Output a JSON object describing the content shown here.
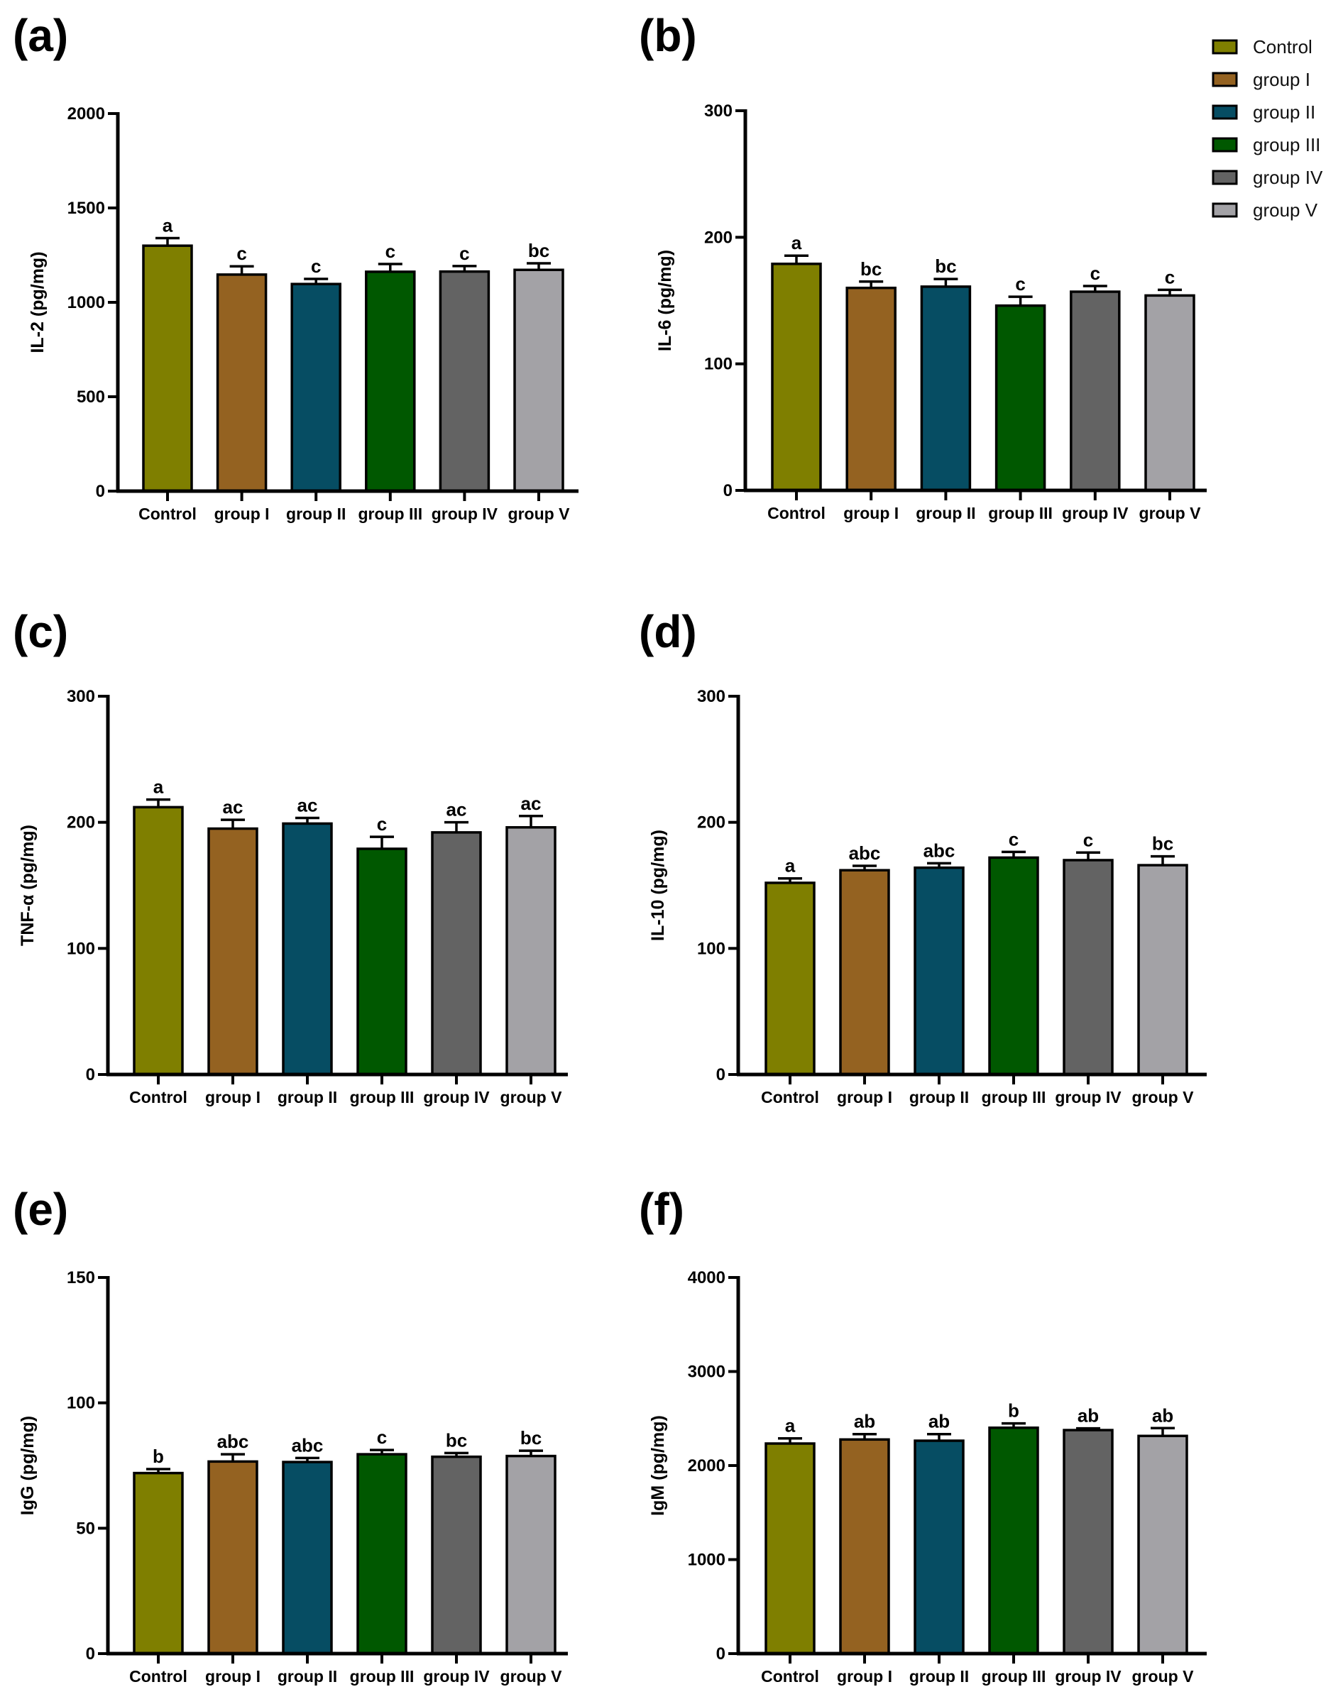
{
  "legend": {
    "position": "top-right",
    "items": [
      {
        "label": "Control",
        "color": "#7F7F00"
      },
      {
        "label": "group I",
        "color": "#946221"
      },
      {
        "label": "group II",
        "color": "#064D63"
      },
      {
        "label": "group III",
        "color": "#005800"
      },
      {
        "label": "group IV",
        "color": "#636363"
      },
      {
        "label": "group V",
        "color": "#A3A2A6"
      }
    ]
  },
  "chart_data": [
    {
      "panel": "(a)",
      "type": "bar",
      "title": "",
      "xlabel": "",
      "ylabel": "IL-2 (pg/mg)",
      "ylim": [
        0,
        2000
      ],
      "yticks": [
        0,
        500,
        1000,
        1500,
        2000
      ],
      "grid": false,
      "categories": [
        "Control",
        "group I",
        "group II",
        "group III",
        "group IV",
        "group V"
      ],
      "values": [
        1300,
        1147,
        1097,
        1162,
        1163,
        1172
      ],
      "errors": [
        40,
        44,
        27,
        41,
        29,
        35
      ],
      "significance": [
        "a",
        "c",
        "c",
        "c",
        "c",
        "bc"
      ]
    },
    {
      "panel": "(b)",
      "type": "bar",
      "title": "",
      "xlabel": "",
      "ylabel": "IL-6 (pg/mg)",
      "ylim": [
        0,
        300
      ],
      "yticks": [
        0,
        100,
        200,
        300
      ],
      "grid": false,
      "categories": [
        "Control",
        "group I",
        "group II",
        "group III",
        "group IV",
        "group V"
      ],
      "values": [
        179,
        160,
        161,
        146,
        157,
        154
      ],
      "errors": [
        6.5,
        5,
        6,
        7,
        4.5,
        4.5
      ],
      "significance": [
        "a",
        "bc",
        "bc",
        "c",
        "c",
        "c"
      ]
    },
    {
      "panel": "(c)",
      "type": "bar",
      "title": "",
      "xlabel": "",
      "ylabel": "TNF-α (pg/mg)",
      "ylim": [
        0,
        300
      ],
      "yticks": [
        0,
        100,
        200,
        300
      ],
      "grid": false,
      "categories": [
        "Control",
        "group I",
        "group II",
        "group III",
        "group IV",
        "group V"
      ],
      "values": [
        212,
        195,
        199,
        179,
        192,
        196
      ],
      "errors": [
        6,
        7,
        4.5,
        9.5,
        8,
        9
      ],
      "significance": [
        "a",
        "ac",
        "ac",
        "c",
        "ac",
        "ac"
      ]
    },
    {
      "panel": "(d)",
      "type": "bar",
      "title": "",
      "xlabel": "",
      "ylabel": "IL-10 (pg/mg)",
      "ylim": [
        0,
        300
      ],
      "yticks": [
        0,
        100,
        200,
        300
      ],
      "grid": false,
      "categories": [
        "Control",
        "group I",
        "group II",
        "group III",
        "group IV",
        "group V"
      ],
      "values": [
        152,
        162,
        164,
        172,
        170,
        166
      ],
      "errors": [
        3.5,
        3.5,
        3.5,
        4.5,
        6,
        7
      ],
      "significance": [
        "a",
        "abc",
        "abc",
        "c",
        "c",
        "bc"
      ]
    },
    {
      "panel": "(e)",
      "type": "bar",
      "title": "",
      "xlabel": "",
      "ylabel": "IgG (pg/mg)",
      "ylim": [
        0,
        150
      ],
      "yticks": [
        0,
        50,
        100,
        150
      ],
      "grid": false,
      "categories": [
        "Control",
        "group I",
        "group II",
        "group III",
        "group IV",
        "group V"
      ],
      "values": [
        72,
        76.6,
        76.4,
        79.5,
        78.5,
        78.8
      ],
      "errors": [
        1.6,
        2.9,
        1.6,
        1.7,
        1.5,
        2.1
      ],
      "significance": [
        "b",
        "abc",
        "abc",
        "c",
        "bc",
        "bc"
      ]
    },
    {
      "panel": "(f)",
      "type": "bar",
      "title": "",
      "xlabel": "",
      "ylabel": "IgM (pg/mg)",
      "ylim": [
        0,
        4000
      ],
      "yticks": [
        0,
        1000,
        2000,
        3000,
        4000
      ],
      "grid": false,
      "categories": [
        "Control",
        "group I",
        "group II",
        "group III",
        "group IV",
        "group V"
      ],
      "values": [
        2234,
        2277,
        2264,
        2402,
        2377,
        2315
      ],
      "errors": [
        55,
        57,
        70,
        46,
        18,
        83
      ],
      "significance": [
        "a",
        "ab",
        "ab",
        "b",
        "ab",
        "ab"
      ]
    }
  ]
}
